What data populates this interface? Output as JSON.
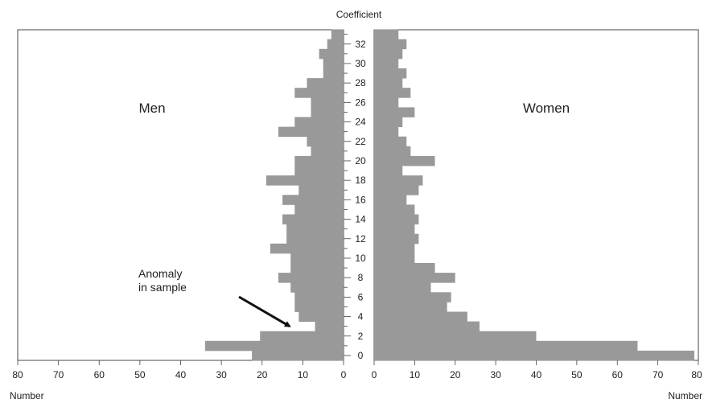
{
  "chart_data": {
    "type": "bar",
    "orientation": "horizontal",
    "layout": "back-to-back",
    "center_axis_label": "Coefficient",
    "y": [
      0,
      1,
      2,
      3,
      4,
      5,
      6,
      7,
      8,
      9,
      10,
      11,
      12,
      13,
      14,
      15,
      16,
      17,
      18,
      19,
      20,
      21,
      22,
      23,
      24,
      25,
      26,
      27,
      28,
      29,
      30,
      31,
      32,
      33
    ],
    "y_tick_labels": [
      "0",
      "2",
      "4",
      "6",
      "8",
      "10",
      "12",
      "14",
      "16",
      "18",
      "20",
      "22",
      "24",
      "26",
      "28",
      "30",
      "32"
    ],
    "series": [
      {
        "name": "Men",
        "values": [
          22.5,
          34,
          20.5,
          7,
          11,
          12,
          12,
          13,
          16,
          13,
          13,
          18,
          14,
          14,
          15,
          12,
          15,
          11,
          19,
          12,
          12,
          8,
          9,
          16,
          12,
          8,
          8,
          12,
          9,
          5,
          5,
          6,
          4,
          3
        ]
      },
      {
        "name": "Women",
        "values": [
          79,
          65,
          40,
          26,
          23,
          18,
          19,
          14,
          20,
          15,
          10,
          10,
          11,
          10,
          11,
          10,
          8,
          11,
          12,
          7,
          15,
          9,
          8,
          6,
          7,
          10,
          6,
          9,
          7,
          8,
          6,
          7,
          8,
          6
        ]
      }
    ],
    "left_axis": {
      "xlabel": "Number",
      "xlim": [
        0,
        80
      ],
      "ticks": [
        "80",
        "70",
        "60",
        "50",
        "40",
        "30",
        "20",
        "10",
        "0"
      ]
    },
    "right_axis": {
      "xlabel": "Number",
      "xlim": [
        0,
        80
      ],
      "ticks": [
        "0",
        "10",
        "20",
        "30",
        "40",
        "50",
        "60",
        "70",
        "80"
      ]
    },
    "annotation": {
      "lines": [
        "Anomaly",
        "in sample"
      ],
      "points_to_coefficient": 3
    },
    "bar_color": "#999999",
    "grid": false
  }
}
